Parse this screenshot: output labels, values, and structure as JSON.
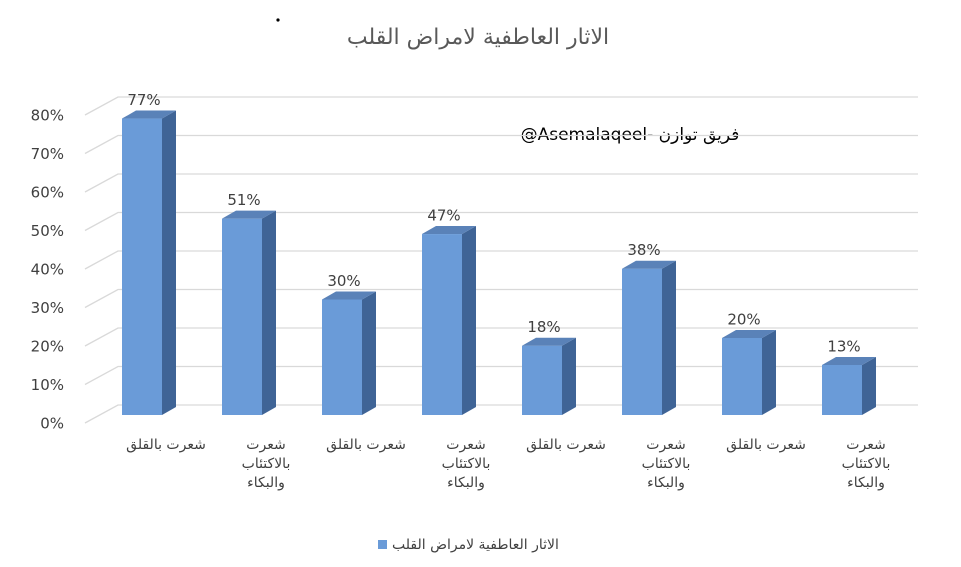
{
  "chart_data": {
    "type": "bar3d",
    "title": "الاثار العاطفية لامراض القلب",
    "annotation": "@Asemalaqeel- فريق توازن",
    "categories": [
      "شعرت بالقلق",
      "شعرت بالاكتئاب والبكاء",
      "شعرت بالقلق",
      "شعرت بالاكتئاب والبكاء",
      "شعرت بالقلق",
      "شعرت بالاكتئاب والبكاء",
      "شعرت بالقلق",
      "شعرت بالاكتئاب والبكاء"
    ],
    "series": [
      {
        "name": "الاثار العاطفية لامراض القلب",
        "color": "#6a9bd8",
        "values": [
          77,
          51,
          30,
          47,
          18,
          38,
          20,
          13
        ],
        "value_labels": [
          "77%",
          "51%",
          "30%",
          "47%",
          "18%",
          "38%",
          "20%",
          "13%"
        ]
      }
    ],
    "ylim": [
      0,
      80
    ],
    "yticks": [
      {
        "value": 0,
        "label": "0%"
      },
      {
        "value": 10,
        "label": "10%"
      },
      {
        "value": 20,
        "label": "20%"
      },
      {
        "value": 30,
        "label": "30%"
      },
      {
        "value": 40,
        "label": "40%"
      },
      {
        "value": 50,
        "label": "50%"
      },
      {
        "value": 60,
        "label": "60%"
      },
      {
        "value": 70,
        "label": "70%"
      },
      {
        "value": 80,
        "label": "80%"
      }
    ],
    "grid": true
  }
}
